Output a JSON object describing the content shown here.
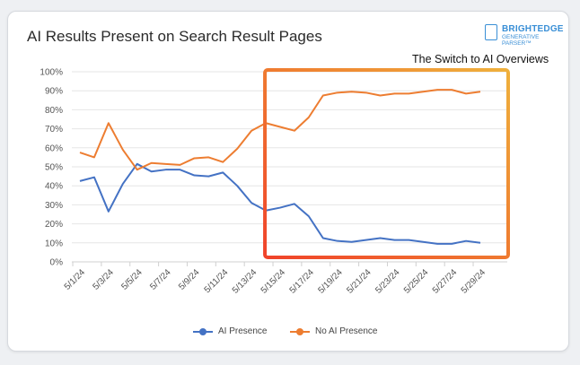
{
  "chart_data": {
    "type": "line",
    "title": "AI Results Present on Search Result Pages",
    "annotation": "The Switch to AI Overviews",
    "logo": {
      "brand": "BRIGHTEDGE",
      "product": "GENERATIVE PARSER™"
    },
    "categories": [
      "5/1/24",
      "5/2/24",
      "5/3/24",
      "5/4/24",
      "5/5/24",
      "5/6/24",
      "5/7/24",
      "5/8/24",
      "5/9/24",
      "5/10/24",
      "5/11/24",
      "5/12/24",
      "5/13/24",
      "5/14/24",
      "5/15/24",
      "5/16/24",
      "5/17/24",
      "5/18/24",
      "5/19/24",
      "5/20/24",
      "5/21/24",
      "5/22/24",
      "5/23/24",
      "5/24/24",
      "5/25/24",
      "5/26/24",
      "5/27/24",
      "5/28/24",
      "5/29/24"
    ],
    "x_tick_labels": [
      "5/1/24",
      "5/3/24",
      "5/5/24",
      "5/7/24",
      "5/9/24",
      "5/11/24",
      "5/13/24",
      "5/15/24",
      "5/17/24",
      "5/19/24",
      "5/21/24",
      "5/23/24",
      "5/25/24",
      "5/27/24",
      "5/29/24"
    ],
    "y_tick_labels": [
      "0%",
      "10%",
      "20%",
      "30%",
      "40%",
      "50%",
      "60%",
      "70%",
      "80%",
      "90%",
      "100%"
    ],
    "ylim": [
      0,
      100
    ],
    "grid": true,
    "legend_position": "bottom",
    "highlight_range": [
      "5/14/24",
      "5/29/24"
    ],
    "series": [
      {
        "name": "AI Presence",
        "color": "#4472c4",
        "values": [
          42.5,
          44.5,
          26.5,
          41,
          51.5,
          47.5,
          48.5,
          48.5,
          45.5,
          45,
          47,
          40,
          31,
          27,
          28.5,
          30.5,
          24,
          12.5,
          11,
          10.5,
          11.5,
          12.5,
          11.5,
          11.5,
          10.5,
          9.5,
          9.5,
          11,
          10
        ]
      },
      {
        "name": "No AI Presence",
        "color": "#ed7d31",
        "values": [
          57.5,
          55,
          73,
          59,
          48.5,
          52,
          51.5,
          51,
          54.5,
          55,
          52.5,
          59.5,
          69,
          73,
          71,
          69,
          76,
          87.5,
          89,
          89.5,
          89,
          87.5,
          88.5,
          88.5,
          89.5,
          90.5,
          90.5,
          88.5,
          89.5
        ]
      }
    ]
  }
}
